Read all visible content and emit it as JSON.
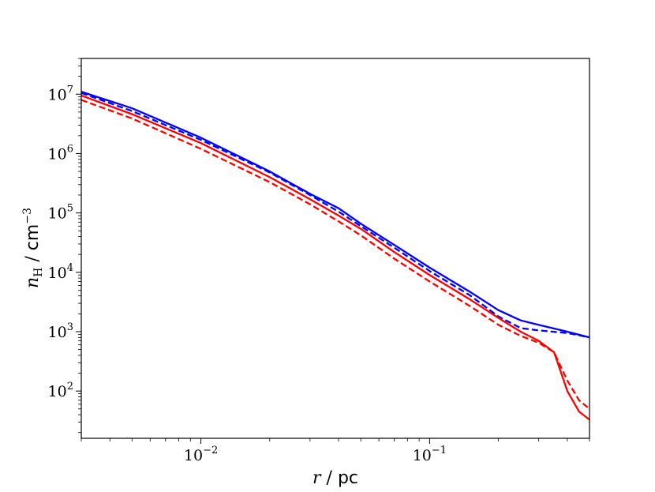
{
  "chart_data": {
    "type": "line",
    "xscale": "log",
    "yscale": "log",
    "xlim": [
      0.003,
      0.5
    ],
    "ylim": [
      16,
      40000000
    ],
    "xlabel": {
      "var": "r",
      "sep": " / ",
      "unit": "pc"
    },
    "ylabel": {
      "var": "n",
      "sub": "H",
      "sep": " / ",
      "unit": "cm",
      "unit_exp": "−3"
    },
    "x_ticks": [
      {
        "value": 0.01,
        "base": "10",
        "exp": "−2"
      },
      {
        "value": 0.1,
        "base": "10",
        "exp": "−1"
      }
    ],
    "y_ticks": [
      {
        "value": 100,
        "base": "10",
        "exp": "2"
      },
      {
        "value": 1000,
        "base": "10",
        "exp": "3"
      },
      {
        "value": 10000,
        "base": "10",
        "exp": "4"
      },
      {
        "value": 100000,
        "base": "10",
        "exp": "5"
      },
      {
        "value": 1000000,
        "base": "10",
        "exp": "6"
      },
      {
        "value": 10000000,
        "base": "10",
        "exp": "7"
      }
    ],
    "grid": false,
    "legend": "none",
    "series": [
      {
        "color": "#0000ff",
        "dash": "solid",
        "x": [
          0.003,
          0.005,
          0.01,
          0.02,
          0.03,
          0.04,
          0.05,
          0.07,
          0.1,
          0.15,
          0.2,
          0.25,
          0.3,
          0.4,
          0.5
        ],
        "y": [
          11000000,
          5800000,
          1850000,
          500000,
          210000,
          120000,
          66000,
          29000,
          12000,
          4700,
          2300,
          1550,
          1300,
          1000,
          800
        ]
      },
      {
        "color": "#0000ff",
        "dash": "dashed",
        "x": [
          0.003,
          0.005,
          0.01,
          0.02,
          0.03,
          0.04,
          0.05,
          0.07,
          0.1,
          0.15,
          0.2,
          0.25,
          0.3,
          0.4,
          0.5
        ],
        "y": [
          10500000,
          5200000,
          1700000,
          480000,
          200000,
          105000,
          60000,
          26000,
          10500,
          4100,
          1800,
          1150,
          1050,
          950,
          800
        ]
      },
      {
        "color": "#ff0000",
        "dash": "solid",
        "x": [
          0.003,
          0.005,
          0.01,
          0.02,
          0.03,
          0.04,
          0.05,
          0.07,
          0.1,
          0.15,
          0.2,
          0.25,
          0.3,
          0.35,
          0.4,
          0.45,
          0.5
        ],
        "y": [
          9500000,
          4600000,
          1500000,
          400000,
          170000,
          90000,
          54000,
          22000,
          9000,
          3500,
          1700,
          1000,
          700,
          450,
          100,
          45,
          33
        ]
      },
      {
        "color": "#ff0000",
        "dash": "dashed",
        "x": [
          0.003,
          0.005,
          0.01,
          0.02,
          0.03,
          0.04,
          0.05,
          0.07,
          0.1,
          0.15,
          0.2,
          0.25,
          0.3,
          0.35,
          0.4,
          0.45,
          0.5
        ],
        "y": [
          8000000,
          3900000,
          1200000,
          330000,
          140000,
          72000,
          42000,
          17000,
          7000,
          2700,
          1300,
          850,
          650,
          450,
          150,
          70,
          50
        ]
      }
    ]
  }
}
